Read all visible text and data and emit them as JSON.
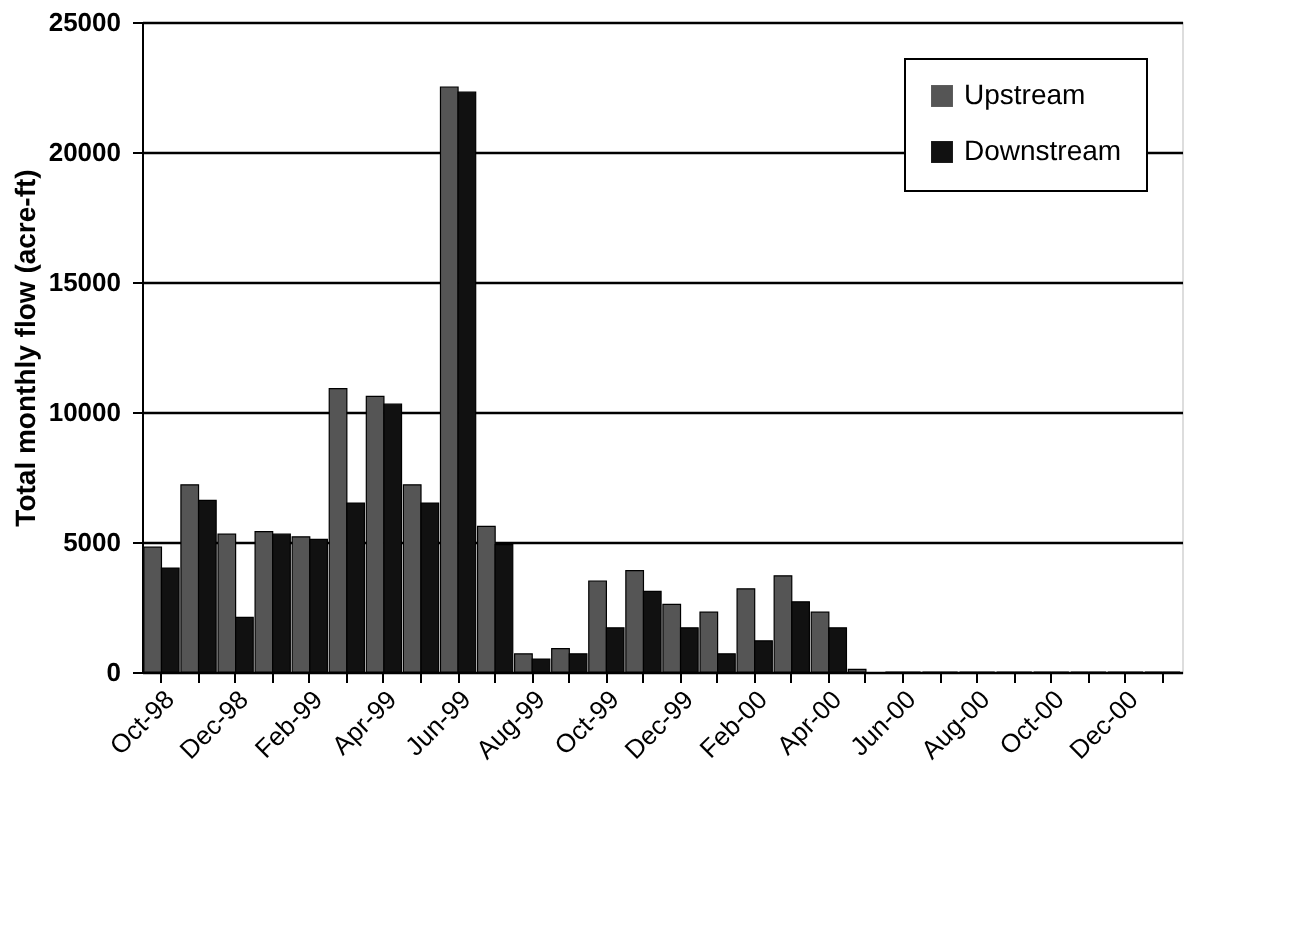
{
  "chart_data": {
    "type": "bar",
    "ylabel": "Total monthly flow (acre-ft)",
    "categories": [
      "Oct-98",
      null,
      "Dec-98",
      null,
      "Feb-99",
      null,
      "Apr-99",
      null,
      "Jun-99",
      null,
      "Aug-99",
      null,
      "Oct-99",
      null,
      "Dec-99",
      null,
      "Feb-00",
      null,
      "Apr-00",
      null,
      "Jun-00",
      null,
      "Aug-00",
      null,
      "Oct-00",
      null,
      "Dec-00",
      null
    ],
    "series": [
      {
        "name": "Upstream",
        "color": "#555555",
        "values": [
          4800,
          7200,
          5300,
          5400,
          5200,
          10900,
          10600,
          7200,
          22500,
          5600,
          700,
          900,
          3500,
          3900,
          2600,
          2300,
          3200,
          3700,
          2300,
          100,
          0,
          0,
          0,
          0,
          0,
          0,
          0,
          0
        ]
      },
      {
        "name": "Downstream",
        "color": "#111111",
        "values": [
          4000,
          6600,
          2100,
          5300,
          5100,
          6500,
          10300,
          6500,
          22300,
          4900,
          500,
          700,
          1700,
          3100,
          1700,
          700,
          1200,
          2700,
          1700,
          null,
          0,
          0,
          0,
          0,
          0,
          0,
          0,
          0
        ]
      }
    ],
    "ylim": [
      0,
      25000
    ],
    "yticks": [
      0,
      5000,
      10000,
      15000,
      20000,
      25000
    ],
    "grid": "y",
    "legend": "top right"
  }
}
